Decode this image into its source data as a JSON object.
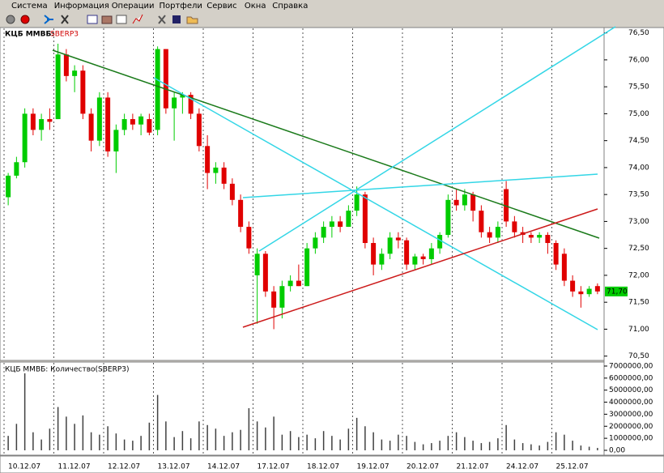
{
  "menu": [
    "Система",
    "Информация",
    "Операции",
    "Портфели",
    "Сервис",
    "Окна",
    "Справка"
  ],
  "chart_data": [
    {
      "type": "candlestick",
      "title": "КЦБ ММВБ:",
      "subtitle": "SBERP3",
      "categories": [
        "10.12.07",
        null,
        null,
        null,
        null,
        null,
        "11.12.07",
        null,
        null,
        null,
        null,
        null,
        "12.12.07",
        null,
        null,
        null,
        null,
        null,
        "13.12.07",
        null,
        null,
        null,
        null,
        null,
        "14.12.07",
        null,
        null,
        null,
        null,
        null,
        "17.12.07",
        null,
        null,
        null,
        null,
        null,
        "18.12.07",
        null,
        null,
        null,
        null,
        null,
        "19.12.07",
        null,
        null,
        null,
        null,
        null,
        "20.12.07",
        null,
        null,
        null,
        null,
        null,
        "21.12.07",
        null,
        null,
        null,
        null,
        null,
        "24.12.07",
        null,
        null,
        null,
        null,
        null,
        "25.12.07",
        null,
        null,
        null,
        null,
        null
      ],
      "open": [
        73.45,
        73.85,
        74.1,
        75.0,
        74.7,
        74.9,
        74.9,
        76.1,
        75.7,
        75.8,
        75.0,
        74.5,
        75.3,
        74.3,
        74.7,
        74.9,
        74.8,
        74.9,
        74.7,
        76.2,
        75.1,
        75.3,
        75.35,
        75.0,
        74.4,
        73.9,
        74.0,
        73.7,
        73.4,
        72.9,
        72.0,
        72.4,
        71.7,
        71.4,
        71.8,
        71.9,
        71.8,
        72.5,
        72.7,
        72.9,
        73.0,
        72.9,
        73.2,
        73.5,
        72.6,
        72.2,
        72.4,
        72.7,
        72.65,
        72.2,
        72.35,
        72.3,
        72.5,
        72.75,
        73.4,
        73.3,
        73.5,
        73.2,
        72.8,
        72.7,
        73.6,
        73.0,
        72.8,
        72.75,
        72.7,
        72.75,
        72.6,
        72.4,
        71.9,
        71.7,
        71.65,
        71.8
      ],
      "high": [
        73.9,
        74.2,
        75.1,
        75.1,
        75.0,
        75.1,
        76.3,
        76.2,
        75.9,
        75.9,
        75.1,
        75.4,
        75.4,
        74.8,
        75.0,
        75.0,
        75.0,
        75.0,
        76.25,
        76.2,
        75.4,
        75.4,
        75.4,
        75.1,
        74.6,
        74.1,
        74.1,
        73.8,
        73.5,
        73.0,
        72.5,
        72.45,
        71.8,
        71.9,
        72.0,
        72.2,
        72.6,
        72.8,
        73.0,
        73.1,
        73.1,
        73.3,
        73.65,
        73.55,
        72.7,
        72.5,
        72.8,
        72.8,
        72.7,
        72.4,
        72.4,
        72.6,
        72.8,
        73.5,
        73.6,
        73.6,
        73.55,
        73.3,
        72.9,
        73.0,
        73.75,
        73.1,
        72.9,
        72.8,
        72.8,
        72.8,
        72.65,
        72.5,
        72.0,
        71.8,
        71.8,
        71.85
      ],
      "low": [
        73.3,
        73.8,
        74.0,
        74.6,
        74.5,
        74.7,
        74.9,
        75.6,
        75.4,
        74.9,
        74.3,
        74.4,
        74.2,
        73.9,
        74.6,
        74.7,
        74.6,
        74.6,
        74.6,
        75.0,
        74.5,
        75.0,
        74.9,
        74.3,
        73.6,
        73.7,
        73.6,
        73.3,
        72.8,
        72.4,
        71.1,
        71.6,
        71.0,
        71.2,
        71.7,
        71.8,
        71.8,
        72.4,
        72.6,
        72.7,
        72.8,
        72.9,
        73.1,
        72.5,
        72.0,
        72.1,
        72.3,
        72.5,
        72.1,
        72.1,
        72.2,
        72.2,
        72.4,
        72.7,
        73.2,
        73.2,
        73.0,
        72.7,
        72.6,
        72.6,
        72.9,
        72.7,
        72.6,
        72.6,
        72.6,
        72.4,
        72.1,
        71.8,
        71.6,
        71.4,
        71.6,
        71.65
      ],
      "close": [
        73.85,
        74.1,
        75.0,
        74.7,
        74.9,
        74.85,
        76.1,
        75.7,
        75.8,
        75.0,
        74.5,
        75.3,
        74.3,
        74.7,
        74.9,
        74.8,
        74.95,
        74.65,
        76.2,
        75.1,
        75.3,
        75.35,
        75.0,
        74.4,
        73.9,
        74.0,
        73.7,
        73.4,
        72.9,
        72.5,
        72.4,
        71.7,
        71.4,
        71.8,
        71.9,
        71.8,
        72.5,
        72.7,
        72.9,
        73.0,
        72.9,
        73.2,
        73.5,
        72.6,
        72.2,
        72.4,
        72.7,
        72.65,
        72.2,
        72.35,
        72.3,
        72.5,
        72.75,
        73.4,
        73.3,
        73.5,
        73.2,
        72.8,
        72.7,
        72.9,
        73.0,
        72.8,
        72.75,
        72.7,
        72.75,
        72.6,
        72.2,
        71.9,
        71.7,
        71.65,
        71.75,
        71.7
      ],
      "up_color": "#00cc00",
      "down_color": "#e00000",
      "last_price": {
        "value": 71.7,
        "label": "71,70"
      },
      "ylim": [
        70.42,
        76.6
      ],
      "yticks": [
        {
          "value": 70.5,
          "label": "70,50"
        },
        {
          "value": 71,
          "label": "71,00"
        },
        {
          "value": 71.5,
          "label": "71,50"
        },
        {
          "value": 72,
          "label": "72,00"
        },
        {
          "value": 72.5,
          "label": "72,50"
        },
        {
          "value": 73,
          "label": "73,00"
        },
        {
          "value": 73.5,
          "label": "73,50"
        },
        {
          "value": 74,
          "label": "74,00"
        },
        {
          "value": 74.5,
          "label": "74,50"
        },
        {
          "value": 75,
          "label": "75,00"
        },
        {
          "value": 75.5,
          "label": "75,50"
        },
        {
          "value": 76,
          "label": "76,00"
        },
        {
          "value": 76.5,
          "label": "76,50"
        }
      ],
      "grid": true
    },
    {
      "type": "bar",
      "title": "КЦБ ММВБ: Количество(SBERP3)",
      "color": "#404040",
      "values": [
        1200000,
        2200000,
        6400000,
        1500000,
        900000,
        1800000,
        3600000,
        2800000,
        2200000,
        2900000,
        1500000,
        1300000,
        2000000,
        1400000,
        900000,
        800000,
        1200000,
        2300000,
        4600000,
        2400000,
        1100000,
        1600000,
        1000000,
        2400000,
        2100000,
        1800000,
        1200000,
        1500000,
        1700000,
        3500000,
        2400000,
        1900000,
        2800000,
        1300000,
        1600000,
        1100000,
        1300000,
        1000000,
        1600000,
        1200000,
        900000,
        1800000,
        2700000,
        2000000,
        1500000,
        900000,
        800000,
        1300000,
        1200000,
        700000,
        500000,
        600000,
        800000,
        1200000,
        1500000,
        1100000,
        800000,
        600000,
        700000,
        1000000,
        2100000,
        900000,
        600000,
        500000,
        400000,
        700000,
        1500000,
        1300000,
        800000,
        400000,
        300000,
        200000
      ],
      "ylim": [
        0,
        7200000
      ],
      "yticks": [
        {
          "value": 0,
          "label": "0,00"
        },
        {
          "value": 1000000,
          "label": "1000000,00"
        },
        {
          "value": 2000000,
          "label": "2000000,00"
        },
        {
          "value": 3000000,
          "label": "3000000,00"
        },
        {
          "value": 4000000,
          "label": "4000000,00"
        },
        {
          "value": 5000000,
          "label": "5000000,00"
        },
        {
          "value": 6000000,
          "label": "6000000,00"
        },
        {
          "value": 7000000,
          "label": "7000000,00"
        }
      ]
    }
  ]
}
